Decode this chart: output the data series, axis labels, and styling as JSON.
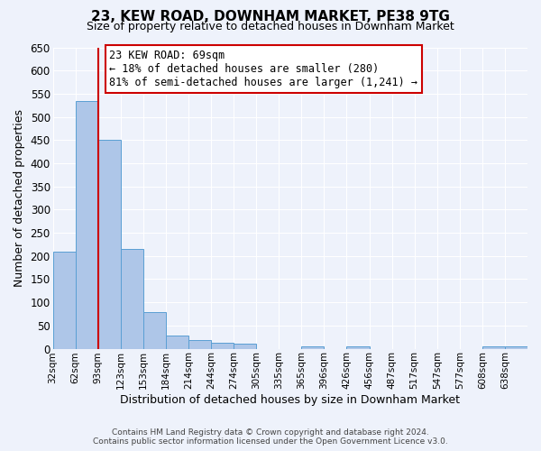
{
  "title": "23, KEW ROAD, DOWNHAM MARKET, PE38 9TG",
  "subtitle": "Size of property relative to detached houses in Downham Market",
  "xlabel": "Distribution of detached houses by size in Downham Market",
  "ylabel": "Number of detached properties",
  "bar_labels": [
    "32sqm",
    "62sqm",
    "93sqm",
    "123sqm",
    "153sqm",
    "184sqm",
    "214sqm",
    "244sqm",
    "274sqm",
    "305sqm",
    "335sqm",
    "365sqm",
    "396sqm",
    "426sqm",
    "456sqm",
    "487sqm",
    "517sqm",
    "547sqm",
    "577sqm",
    "608sqm",
    "638sqm"
  ],
  "bar_values": [
    210,
    535,
    450,
    215,
    78,
    28,
    18,
    12,
    10,
    0,
    0,
    5,
    0,
    5,
    0,
    0,
    0,
    0,
    0,
    5,
    5
  ],
  "bar_color": "#aec6e8",
  "bar_edge_color": "#5a9fd4",
  "vline_color": "#cc0000",
  "ylim": [
    0,
    650
  ],
  "yticks": [
    0,
    50,
    100,
    150,
    200,
    250,
    300,
    350,
    400,
    450,
    500,
    550,
    600,
    650
  ],
  "annotation_title": "23 KEW ROAD: 69sqm",
  "annotation_line1": "← 18% of detached houses are smaller (280)",
  "annotation_line2": "81% of semi-detached houses are larger (1,241) →",
  "annotation_box_color": "#ffffff",
  "annotation_box_edge_color": "#cc0000",
  "footer_line1": "Contains HM Land Registry data © Crown copyright and database right 2024.",
  "footer_line2": "Contains public sector information licensed under the Open Government Licence v3.0.",
  "bg_color": "#eef2fb",
  "plot_bg_color": "#eef2fb",
  "grid_color": "#ffffff"
}
